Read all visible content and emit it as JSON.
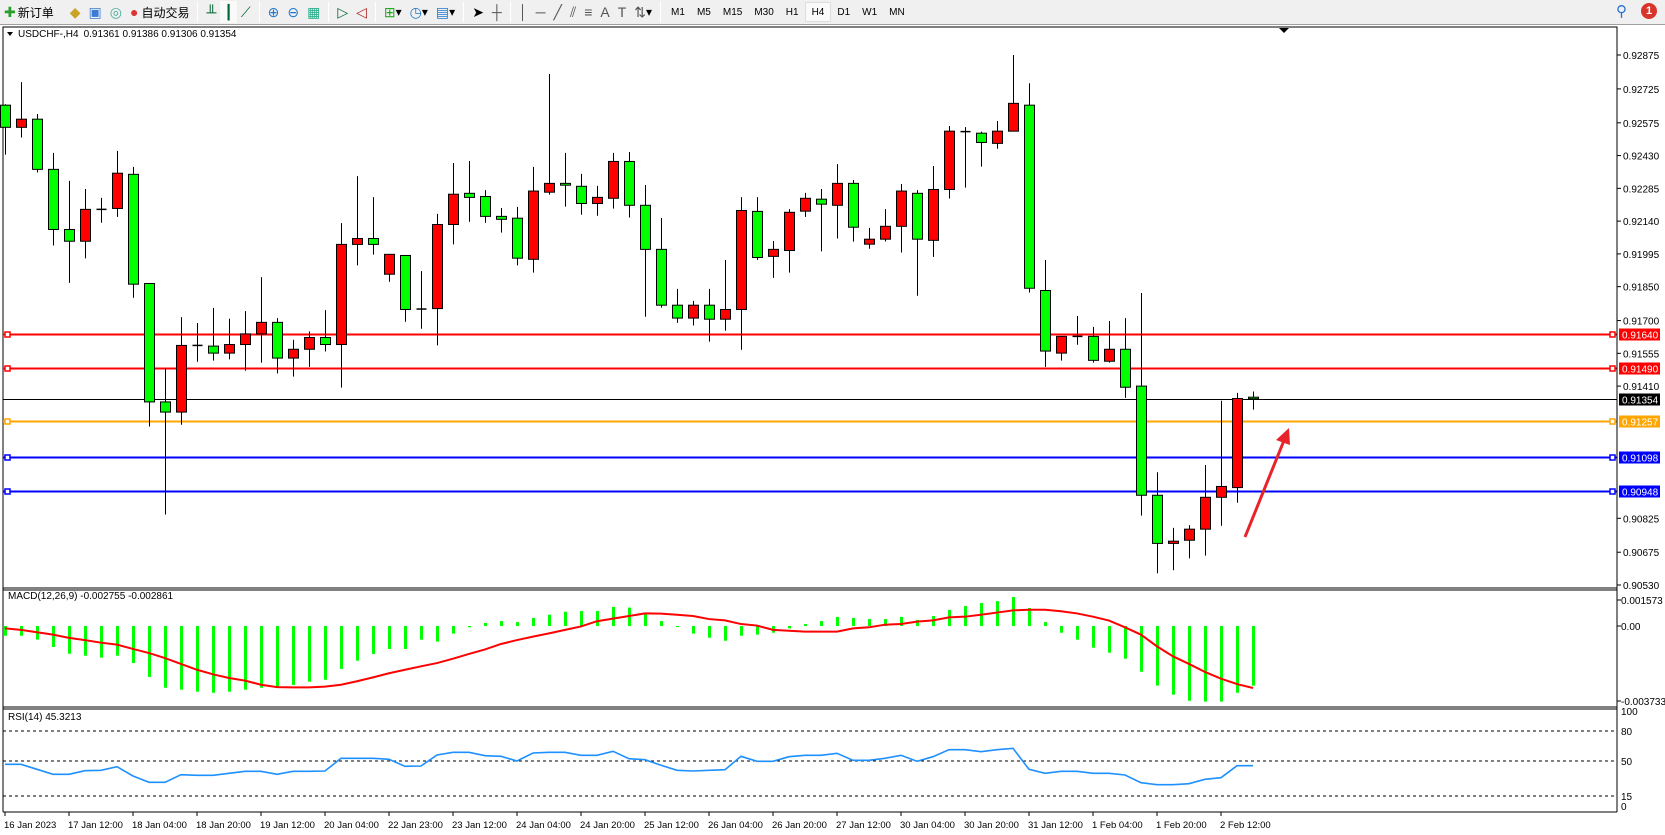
{
  "toolbar": {
    "new_order": "新订单",
    "auto_trading": "自动交易",
    "timeframes": [
      "M1",
      "M5",
      "M15",
      "M30",
      "H1",
      "H4",
      "D1",
      "W1",
      "MN"
    ],
    "selected_timeframe": "H4",
    "notification_count": "1",
    "icons": [
      "new-order-icon",
      "history-icon",
      "market-watch-icon",
      "signals-icon",
      "auto-trading-icon",
      "bar-chart-icon",
      "candlestick-icon",
      "line-chart-icon",
      "zoom-in-icon",
      "zoom-out-icon",
      "tile-windows-icon",
      "auto-scroll-icon",
      "chart-shift-icon",
      "indicators-icon",
      "periods-icon",
      "templates-icon",
      "cursor-icon",
      "crosshair-icon",
      "vertical-line-icon",
      "horizontal-line-icon",
      "trendline-icon",
      "equidistant-channel-icon",
      "fibonacci-icon",
      "text-icon",
      "text-label-icon",
      "arrows-icon",
      "search-icon",
      "notification-icon"
    ]
  },
  "chart_header": {
    "symbol": "USDCHF-,H4",
    "ohlc_text": "0.91361 0.91386 0.91306 0.91354"
  },
  "colors": {
    "bull": "#ff0000",
    "bear": "#00ff00",
    "macd_hist": "#00ff00",
    "signal": "#ff0000",
    "rsi": "#1e90ff",
    "resistance": "#ff0000",
    "support": "#0000ff",
    "pivot": "#ffa500",
    "current": "#000000"
  },
  "chart_data": [
    {
      "type": "candlestick",
      "symbol": "USDCHF-",
      "timeframe": "H4",
      "ylim": [
        0.9053,
        0.92875
      ],
      "y_tick_labels": [
        "0.92875",
        "0.92725",
        "0.92575",
        "0.92430",
        "0.92285",
        "0.92140",
        "0.91995",
        "0.91850",
        "0.91700",
        "0.91555",
        "0.91410",
        "0.90825",
        "0.90675",
        "0.90530"
      ],
      "x_tick_labels": [
        "16 Jan 2023",
        "17 Jan 12:00",
        "18 Jan 04:00",
        "18 Jan 20:00",
        "19 Jan 12:00",
        "20 Jan 04:00",
        "22 Jan 23:00",
        "23 Jan 12:00",
        "24 Jan 04:00",
        "24 Jan 20:00",
        "25 Jan 12:00",
        "26 Jan 04:00",
        "26 Jan 20:00",
        "27 Jan 12:00",
        "30 Jan 04:00",
        "30 Jan 20:00",
        "31 Jan 12:00",
        "1 Feb 04:00",
        "1 Feb 20:00",
        "2 Feb 12:00"
      ],
      "ohlc": [
        [
          0.92653,
          0.92657,
          0.92434,
          0.92555
        ],
        [
          0.92555,
          0.92755,
          0.9251,
          0.92591
        ],
        [
          0.92591,
          0.92614,
          0.92355,
          0.92369
        ],
        [
          0.92369,
          0.92442,
          0.92032,
          0.92103
        ],
        [
          0.92103,
          0.92318,
          0.91867,
          0.92051
        ],
        [
          0.92051,
          0.92282,
          0.91975,
          0.92192
        ],
        [
          0.92192,
          0.92243,
          0.92133,
          0.92192
        ],
        [
          0.92196,
          0.92451,
          0.92159,
          0.92352
        ],
        [
          0.92347,
          0.9238,
          0.91801,
          0.91861
        ],
        [
          0.91864,
          0.91864,
          0.91231,
          0.9134
        ],
        [
          0.9134,
          0.91489,
          0.90842,
          0.91295
        ],
        [
          0.91295,
          0.91715,
          0.91239,
          0.9159
        ],
        [
          0.9159,
          0.91689,
          0.91518,
          0.9159
        ],
        [
          0.91587,
          0.91756,
          0.91523,
          0.91556
        ],
        [
          0.91556,
          0.91708,
          0.91528,
          0.91594
        ],
        [
          0.91594,
          0.91742,
          0.91478,
          0.91641
        ],
        [
          0.91641,
          0.91892,
          0.91514,
          0.91692
        ],
        [
          0.91692,
          0.91711,
          0.91466,
          0.91534
        ],
        [
          0.91534,
          0.91615,
          0.91452,
          0.91573
        ],
        [
          0.91573,
          0.91652,
          0.91495,
          0.91625
        ],
        [
          0.91625,
          0.91746,
          0.91563,
          0.91594
        ],
        [
          0.91594,
          0.92131,
          0.91403,
          0.92037
        ],
        [
          0.92037,
          0.92339,
          0.91944,
          0.92063
        ],
        [
          0.92063,
          0.92246,
          0.91992,
          0.92037
        ],
        [
          0.91905,
          0.91993,
          0.91872,
          0.91993
        ],
        [
          0.91988,
          0.91988,
          0.91695,
          0.91749
        ],
        [
          0.91751,
          0.91919,
          0.91664,
          0.91751
        ],
        [
          0.91753,
          0.92172,
          0.9159,
          0.92125
        ],
        [
          0.92125,
          0.92397,
          0.92037,
          0.92259
        ],
        [
          0.92263,
          0.92406,
          0.92137,
          0.92245
        ],
        [
          0.92249,
          0.92277,
          0.92133,
          0.92161
        ],
        [
          0.92161,
          0.92198,
          0.92089,
          0.92148
        ],
        [
          0.92153,
          0.92203,
          0.91944,
          0.91976
        ],
        [
          0.91971,
          0.9238,
          0.91912,
          0.92273
        ],
        [
          0.92268,
          0.92791,
          0.92257,
          0.92307
        ],
        [
          0.92307,
          0.92442,
          0.92204,
          0.92299
        ],
        [
          0.92294,
          0.92349,
          0.92168,
          0.92218
        ],
        [
          0.92218,
          0.92296,
          0.92164,
          0.92245
        ],
        [
          0.92241,
          0.92442,
          0.92195,
          0.92404
        ],
        [
          0.92404,
          0.92446,
          0.92156,
          0.9221
        ],
        [
          0.9221,
          0.923,
          0.91717,
          0.92015
        ],
        [
          0.92015,
          0.92154,
          0.91757,
          0.91768
        ],
        [
          0.91768,
          0.9184,
          0.9169,
          0.91711
        ],
        [
          0.91711,
          0.91787,
          0.91678,
          0.91768
        ],
        [
          0.91768,
          0.9184,
          0.91607,
          0.91706
        ],
        [
          0.91706,
          0.91968,
          0.91655,
          0.91749
        ],
        [
          0.91749,
          0.92246,
          0.91571,
          0.92187
        ],
        [
          0.92183,
          0.92246,
          0.91968,
          0.91979
        ],
        [
          0.91984,
          0.92052,
          0.91889,
          0.92015
        ],
        [
          0.9201,
          0.92193,
          0.91912,
          0.92179
        ],
        [
          0.92184,
          0.92265,
          0.92159,
          0.92241
        ],
        [
          0.92237,
          0.92282,
          0.92006,
          0.92215
        ],
        [
          0.9221,
          0.92392,
          0.92063,
          0.92307
        ],
        [
          0.92307,
          0.92322,
          0.92049,
          0.92113
        ],
        [
          0.92038,
          0.9211,
          0.92018,
          0.9206
        ],
        [
          0.9206,
          0.92193,
          0.9205,
          0.92117
        ],
        [
          0.92117,
          0.92304,
          0.92001,
          0.92273
        ],
        [
          0.92263,
          0.92277,
          0.9181,
          0.9206
        ],
        [
          0.92055,
          0.92384,
          0.91982,
          0.9228
        ],
        [
          0.9228,
          0.92561,
          0.9224,
          0.92538
        ],
        [
          0.92536,
          0.92556,
          0.92288,
          0.92536
        ],
        [
          0.92529,
          0.92536,
          0.92381,
          0.92488
        ],
        [
          0.92484,
          0.92583,
          0.9246,
          0.92538
        ],
        [
          0.92538,
          0.92875,
          0.92538,
          0.92661
        ],
        [
          0.92653,
          0.9275,
          0.91824,
          0.91843
        ],
        [
          0.91833,
          0.91968,
          0.91495,
          0.91565
        ],
        [
          0.91556,
          0.9163,
          0.91523,
          0.9163
        ],
        [
          0.9163,
          0.9172,
          0.91593,
          0.9163
        ],
        [
          0.9163,
          0.91672,
          0.91514,
          0.91524
        ],
        [
          0.9152,
          0.91698,
          0.91514,
          0.91573
        ],
        [
          0.91573,
          0.91711,
          0.91358,
          0.91405
        ],
        [
          0.9141,
          0.91822,
          0.90837,
          0.90927
        ],
        [
          0.90927,
          0.91029,
          0.90582,
          0.90714
        ],
        [
          0.90714,
          0.90783,
          0.90595,
          0.90724
        ],
        [
          0.90728,
          0.90795,
          0.90648,
          0.90777
        ],
        [
          0.90777,
          0.91061,
          0.9066,
          0.90918
        ],
        [
          0.90918,
          0.91345,
          0.90792,
          0.90966
        ],
        [
          0.90961,
          0.9138,
          0.90894,
          0.91355
        ],
        [
          0.91361,
          0.91386,
          0.91306,
          0.91354
        ]
      ],
      "horizontal_lines": [
        {
          "price": "0.91640",
          "role": "resistance"
        },
        {
          "price": "0.91490",
          "role": "resistance"
        },
        {
          "price": "0.91354",
          "role": "current"
        },
        {
          "price": "0.91257",
          "role": "pivot"
        },
        {
          "price": "0.91098",
          "role": "support"
        },
        {
          "price": "0.90948",
          "role": "support"
        }
      ],
      "annotation": "red-up-arrow"
    },
    {
      "type": "bar",
      "label": "MACD(12,26,9) -0.002755 -0.002861",
      "ylim": [
        -0.003733,
        0.001573
      ],
      "y_tick_labels": [
        "0.001573",
        "0.00",
        "-0.003733"
      ],
      "macd": [
        -0.00045,
        -0.00045,
        -0.00063,
        -0.00097,
        -0.00128,
        -0.00137,
        -0.00146,
        -0.00137,
        -0.00171,
        -0.00235,
        -0.00285,
        -0.00294,
        -0.00303,
        -0.00308,
        -0.00303,
        -0.00294,
        -0.00285,
        -0.00285,
        -0.00272,
        -0.00257,
        -0.00248,
        -0.00198,
        -0.0016,
        -0.00129,
        -0.00106,
        -0.00106,
        -0.00063,
        -0.00072,
        -0.00035,
        -6e-05,
        0.00014,
        0.00023,
        0.00018,
        0.00037,
        0.00052,
        0.00066,
        0.00069,
        0.00069,
        0.00088,
        0.00085,
        0.00057,
        0.00023,
        -5e-05,
        -0.00035,
        -0.00054,
        -0.00068,
        -0.00045,
        -0.0004,
        -0.00031,
        -0.00011,
        9e-05,
        0.00023,
        0.00042,
        0.00037,
        0.00032,
        0.00032,
        0.00042,
        0.00028,
        0.00046,
        0.00074,
        0.00092,
        0.00106,
        0.00115,
        0.00134,
        0.00083,
        0.00018,
        -0.00031,
        -0.00063,
        -0.001,
        -0.00123,
        -0.00151,
        -0.00211,
        -0.00275,
        -0.00317,
        -0.00345,
        -0.00349,
        -0.00349,
        -0.00308,
        -0.002755
      ],
      "signal": [
        -0.00011,
        -0.00018,
        -0.00029,
        -0.0004,
        -0.00055,
        -0.00065,
        -0.00077,
        -0.00086,
        -0.00106,
        -0.00125,
        -0.00148,
        -0.00175,
        -0.00202,
        -0.00223,
        -0.0024,
        -0.00252,
        -0.00271,
        -0.00282,
        -0.00283,
        -0.00283,
        -0.0028,
        -0.00271,
        -0.00255,
        -0.00237,
        -0.00218,
        -0.00202,
        -0.00186,
        -0.00171,
        -0.00151,
        -0.00129,
        -0.00108,
        -0.00083,
        -0.00065,
        -0.00049,
        -0.00034,
        -0.00018,
        -2e-05,
        0.00022,
        0.00034,
        0.00046,
        0.00058,
        0.00057,
        0.00052,
        0.00046,
        0.00032,
        0.00026,
        9e-05,
        2e-05,
        -0.00018,
        -0.00022,
        -0.00026,
        -0.00026,
        -0.00026,
        -0.00011,
        -6e-05,
        6e-05,
        9e-05,
        0.0002,
        0.00026,
        0.0004,
        0.00043,
        0.00052,
        0.00062,
        0.00072,
        0.00075,
        0.00075,
        0.00068,
        0.00058,
        0.00043,
        0.00025,
        -6e-05,
        -0.0004,
        -0.00094,
        -0.0014,
        -0.00175,
        -0.00212,
        -0.00243,
        -0.00268,
        -0.002861
      ]
    },
    {
      "type": "line",
      "label": "RSI(14) 45.3213",
      "ylim": [
        0,
        100
      ],
      "levels": [
        80,
        50,
        15
      ],
      "y_tick_labels": [
        "100",
        "80",
        "50",
        "15",
        "0"
      ],
      "values": [
        46.7,
        46.7,
        41.7,
        36.7,
        36.7,
        40.3,
        40.7,
        44.3,
        35,
        28.7,
        28.7,
        36.3,
        35.7,
        35.7,
        37.7,
        39.7,
        39.7,
        36.7,
        39.7,
        39.7,
        40,
        52.7,
        52.7,
        52.7,
        51.7,
        44.7,
        45,
        56,
        58.7,
        58.7,
        55.3,
        54.7,
        50,
        58,
        58.7,
        58.7,
        55.7,
        55.7,
        59.7,
        52.3,
        51.3,
        45.7,
        40.7,
        40,
        40.7,
        41.3,
        54.7,
        49.7,
        49.7,
        54.3,
        55.7,
        55.7,
        57.7,
        50.7,
        50.7,
        52.7,
        55.7,
        49.7,
        54.3,
        61.3,
        61.3,
        59.3,
        61.3,
        62.7,
        41.7,
        37.7,
        39.7,
        39.7,
        37.7,
        37.7,
        36,
        28.3,
        26.3,
        26.3,
        27.3,
        31.7,
        33.3,
        45.3,
        45.3213
      ]
    }
  ]
}
